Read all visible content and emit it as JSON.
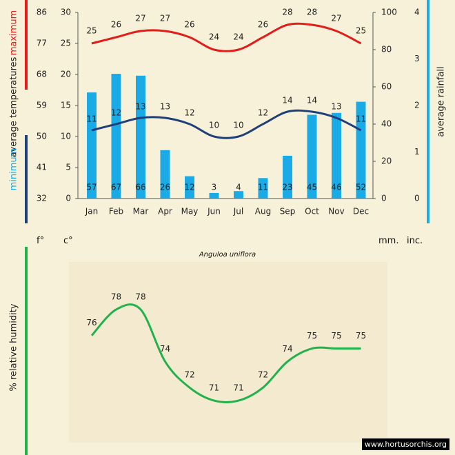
{
  "colors": {
    "max_temp": "#e41b17",
    "min_temp": "#1f3f7a",
    "rainfall": "#1aaae6",
    "humidity": "#21b24b",
    "background": "#f8f1d9",
    "text": "#222222"
  },
  "labels": {
    "maximum": "maximum",
    "minimum": "minimum",
    "avg_temperatures": "average temperatures",
    "avg_rainfall": "average rainfall",
    "relative_humidity": "% relative humidity",
    "f_unit": "f°",
    "c_unit": "c°",
    "mm_unit": "mm.",
    "inc_unit": "inc.",
    "species": "Anguloa uniflora",
    "watermark": "www.hortusorchis.org"
  },
  "chart_data": [
    {
      "type": "bar",
      "title": "Anguloa uniflora",
      "categories": [
        "Jan",
        "Feb",
        "Mar",
        "Apr",
        "May",
        "Jun",
        "Jul",
        "Aug",
        "Sep",
        "Oct",
        "Nov",
        "Dec"
      ],
      "series": [
        {
          "name": "average rainfall (mm)",
          "values": [
            57,
            67,
            66,
            26,
            12,
            3,
            4,
            11,
            23,
            45,
            46,
            52
          ]
        }
      ],
      "ylabel": "average rainfall",
      "ylim_mm": [
        0,
        100
      ],
      "yticks_mm": [
        "0",
        "20",
        "40",
        "60",
        "80",
        "100"
      ],
      "ylim_in": [
        0,
        4
      ],
      "yticks_in": [
        "0",
        "1",
        "2",
        "3",
        "4"
      ]
    },
    {
      "type": "line",
      "categories": [
        "Jan",
        "Feb",
        "Mar",
        "Apr",
        "May",
        "Jun",
        "Jul",
        "Aug",
        "Sep",
        "Oct",
        "Nov",
        "Dec"
      ],
      "series": [
        {
          "name": "maximum",
          "values": [
            25,
            26,
            27,
            27,
            26,
            24,
            24,
            26,
            28,
            28,
            27,
            25
          ]
        },
        {
          "name": "minimum",
          "values": [
            11,
            12,
            13,
            13,
            12,
            10,
            10,
            12,
            14,
            14,
            13,
            11
          ]
        }
      ],
      "ylabel": "average temperatures",
      "ylim_c": [
        0,
        30
      ],
      "yticks_c": [
        "0",
        "5",
        "10",
        "15",
        "20",
        "25",
        "30"
      ],
      "yticks_f": [
        "32",
        "41",
        "50",
        "59",
        "68",
        "77",
        "86"
      ]
    },
    {
      "type": "line",
      "categories": [
        "Jan",
        "Feb",
        "Mar",
        "Apr",
        "May",
        "Jun",
        "Jul",
        "Aug",
        "Sep",
        "Oct",
        "Nov",
        "Dec"
      ],
      "series": [
        {
          "name": "% relative humidity",
          "values": [
            76,
            78,
            78,
            74,
            72,
            71,
            71,
            72,
            74,
            75,
            75,
            75
          ]
        }
      ],
      "ylabel": "% relative humidity"
    }
  ]
}
